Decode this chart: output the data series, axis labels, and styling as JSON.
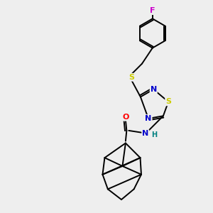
{
  "background_color": "#eeeeee",
  "atom_colors": {
    "C": "#000000",
    "N": "#0000cc",
    "S": "#cccc00",
    "O": "#ff0000",
    "F": "#cc00cc",
    "H": "#008080",
    "bond": "#000000"
  },
  "figsize": [
    3.0,
    3.0
  ],
  "dpi": 100
}
